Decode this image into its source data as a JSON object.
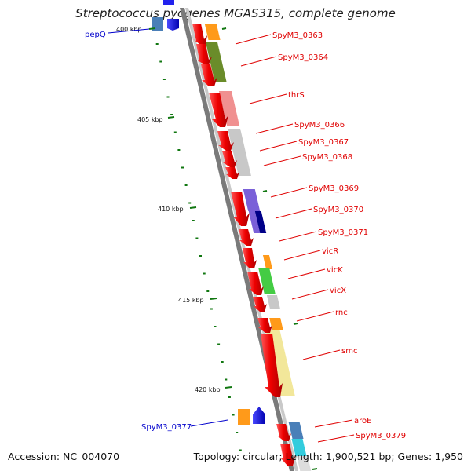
{
  "title": "Streptococcus pyogenes MGAS315, complete genome",
  "accession": "Accession: NC_004070",
  "topology": "Topology: circular; Length: 1,900,521 bp; Genes: 1,950",
  "colors": {
    "forward_label": "#e00000",
    "reverse_label": "#0000cc",
    "tick": "#117711",
    "backbone": "#808080"
  },
  "ticks": [
    {
      "label": "400 kbp"
    },
    {
      "label": "405 kbp"
    },
    {
      "label": "410 kbp"
    },
    {
      "label": "415 kbp"
    },
    {
      "label": "420 kbp"
    }
  ],
  "gene_labels": [
    {
      "text": "pepQ",
      "strand": "reverse"
    },
    {
      "text": "SpyM3_0363",
      "strand": "forward"
    },
    {
      "text": "SpyM3_0364",
      "strand": "forward"
    },
    {
      "text": "thrS",
      "strand": "forward"
    },
    {
      "text": "SpyM3_0366",
      "strand": "forward"
    },
    {
      "text": "SpyM3_0367",
      "strand": "forward"
    },
    {
      "text": "SpyM3_0368",
      "strand": "forward"
    },
    {
      "text": "SpyM3_0369",
      "strand": "forward"
    },
    {
      "text": "SpyM3_0370",
      "strand": "forward"
    },
    {
      "text": "SpyM3_0371",
      "strand": "forward"
    },
    {
      "text": "vicR",
      "strand": "forward"
    },
    {
      "text": "vicK",
      "strand": "forward"
    },
    {
      "text": "vicX",
      "strand": "forward"
    },
    {
      "text": "rnc",
      "strand": "forward"
    },
    {
      "text": "smc",
      "strand": "forward"
    },
    {
      "text": "SpyM3_0377",
      "strand": "reverse"
    },
    {
      "text": "aroE",
      "strand": "forward"
    },
    {
      "text": "SpyM3_0379",
      "strand": "forward"
    }
  ]
}
